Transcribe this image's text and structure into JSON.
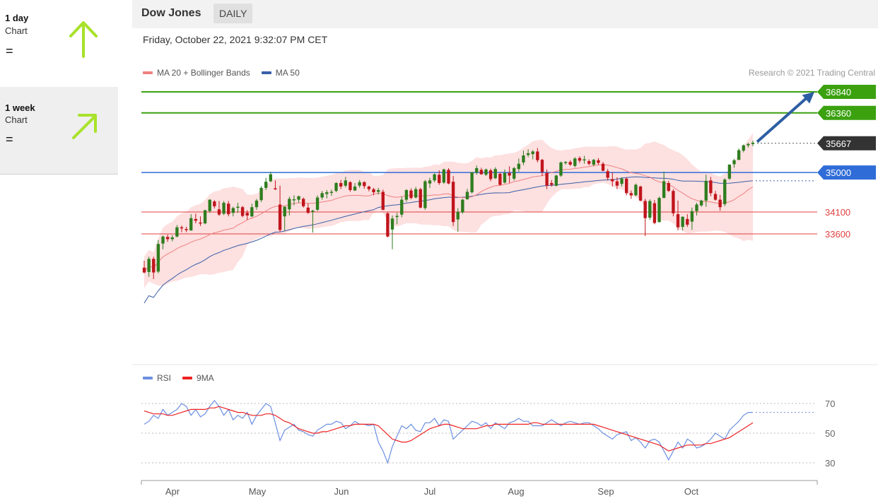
{
  "sidebar": {
    "cards": [
      {
        "period": "1 day",
        "sub": "Chart",
        "status": "=",
        "arrow": "up-arrow",
        "arrow_color": "#a8e22a"
      },
      {
        "period": "1 week",
        "sub": "Chart",
        "status": "=",
        "arrow": "up-right-arrow",
        "arrow_color": "#a8e22a"
      }
    ]
  },
  "header": {
    "instrument": "Dow Jones",
    "period": "DAILY",
    "datetime": "Friday, October 22, 2021 9:32:07 PM CET"
  },
  "legend": {
    "ma20": "MA 20 + Bollinger Bands",
    "ma50": "MA 50",
    "credit": "Research © 2021 Trading Central",
    "rsi": "RSI",
    "rsi_ma": "9MA"
  },
  "colors": {
    "up": "#2f7d1f",
    "down": "#c0151c",
    "target": "#3ba10f",
    "pivot": "#2f6cd8",
    "support": "#e04040",
    "current": "#333333",
    "ma20": "#f08080",
    "ma50": "#3a5fa8",
    "band": "#fde0e0",
    "rsi": "#6b8fe0",
    "rsi_ma": "#ee2222",
    "forecast_arrow": "#2d5ea3"
  },
  "chart_data": [
    {
      "type": "candlestick",
      "title": "Dow Jones",
      "x_ticks": [
        "Apr",
        "May",
        "Jun",
        "Jul",
        "Aug",
        "Sep",
        "Oct"
      ],
      "ylim": [
        32150,
        36950
      ],
      "levels": [
        {
          "value": 36840,
          "label": "36840",
          "kind": "target"
        },
        {
          "value": 36360,
          "label": "36360",
          "kind": "target"
        },
        {
          "value": 35667,
          "label": "35667",
          "kind": "current"
        },
        {
          "value": 35000,
          "label": "35000",
          "kind": "pivot"
        },
        {
          "value": 34100,
          "label": "34100",
          "kind": "support"
        },
        {
          "value": 33600,
          "label": "33600",
          "kind": "support"
        }
      ],
      "forecast": {
        "from": 35700,
        "to": 36840
      },
      "candles": [
        [
          32830,
          32990,
          32700,
          32720
        ],
        [
          32730,
          33080,
          32620,
          33030
        ],
        [
          33030,
          33080,
          32570,
          32720
        ],
        [
          32740,
          33460,
          32700,
          33370
        ],
        [
          33380,
          33560,
          33250,
          33540
        ],
        [
          33530,
          33580,
          33420,
          33480
        ],
        [
          33480,
          33570,
          33430,
          33520
        ],
        [
          33540,
          33800,
          33520,
          33750
        ],
        [
          33750,
          33790,
          33640,
          33730
        ],
        [
          33710,
          33760,
          33640,
          33700
        ],
        [
          33680,
          34050,
          33670,
          33960
        ],
        [
          33940,
          34060,
          33840,
          33900
        ],
        [
          33860,
          34000,
          33780,
          33840
        ],
        [
          33840,
          34150,
          33820,
          34140
        ],
        [
          34120,
          34390,
          34080,
          34380
        ],
        [
          34340,
          34370,
          34180,
          34230
        ],
        [
          34160,
          34350,
          34010,
          34040
        ],
        [
          34060,
          34350,
          34030,
          34310
        ],
        [
          34290,
          34350,
          34000,
          34050
        ],
        [
          34080,
          34220,
          34000,
          34190
        ],
        [
          34200,
          34310,
          34080,
          34220
        ],
        [
          34210,
          34240,
          33980,
          34010
        ],
        [
          34080,
          34140,
          33920,
          34020
        ],
        [
          34000,
          34290,
          33980,
          34210
        ],
        [
          34210,
          34400,
          34150,
          34360
        ],
        [
          34370,
          34690,
          34330,
          34650
        ],
        [
          34650,
          34880,
          34600,
          34790
        ],
        [
          34800,
          35020,
          34780,
          34960
        ],
        [
          34640,
          34820,
          34600,
          34620
        ],
        [
          34270,
          34700,
          33640,
          33690
        ],
        [
          34000,
          34230,
          33670,
          34220
        ],
        [
          34160,
          34450,
          34020,
          34400
        ],
        [
          34390,
          34480,
          34250,
          34390
        ],
        [
          34380,
          34470,
          34310,
          34460
        ],
        [
          34400,
          34430,
          34200,
          34230
        ],
        [
          34200,
          34300,
          34060,
          34080
        ],
        [
          34100,
          34150,
          33630,
          34130
        ],
        [
          34150,
          34480,
          34120,
          34430
        ],
        [
          34430,
          34580,
          34380,
          34530
        ],
        [
          34510,
          34600,
          34410,
          34550
        ],
        [
          34540,
          34610,
          34470,
          34560
        ],
        [
          34580,
          34780,
          34550,
          34760
        ],
        [
          34760,
          34830,
          34620,
          34680
        ],
        [
          34700,
          34900,
          34660,
          34820
        ],
        [
          34780,
          34800,
          34560,
          34600
        ],
        [
          34590,
          34760,
          34580,
          34680
        ],
        [
          34700,
          34830,
          34650,
          34780
        ],
        [
          34780,
          34800,
          34630,
          34690
        ],
        [
          34680,
          34700,
          34570,
          34620
        ],
        [
          34620,
          34650,
          34480,
          34550
        ],
        [
          34560,
          34650,
          34500,
          34600
        ],
        [
          34560,
          34610,
          34140,
          34150
        ],
        [
          34070,
          34090,
          33520,
          33540
        ],
        [
          33700,
          34020,
          33250,
          33950
        ],
        [
          34000,
          34080,
          33820,
          34010
        ],
        [
          34040,
          34450,
          33980,
          34380
        ],
        [
          34380,
          34620,
          34330,
          34600
        ],
        [
          34590,
          34640,
          34390,
          34420
        ],
        [
          34430,
          34670,
          34410,
          34620
        ],
        [
          34620,
          34650,
          34180,
          34200
        ],
        [
          34190,
          34830,
          34150,
          34800
        ],
        [
          34750,
          34880,
          34650,
          34820
        ],
        [
          34820,
          34980,
          34780,
          34960
        ],
        [
          34950,
          35050,
          34720,
          34760
        ],
        [
          34770,
          35090,
          34740,
          35070
        ],
        [
          35060,
          35100,
          34730,
          34750
        ],
        [
          34790,
          34920,
          33780,
          33870
        ],
        [
          33930,
          34190,
          33650,
          34100
        ],
        [
          34090,
          34400,
          34060,
          34380
        ],
        [
          34390,
          34630,
          34380,
          34560
        ],
        [
          34550,
          35000,
          34520,
          35010
        ],
        [
          35000,
          35160,
          34950,
          35100
        ],
        [
          35060,
          35110,
          34950,
          34960
        ],
        [
          34950,
          35090,
          34920,
          35070
        ],
        [
          35050,
          35090,
          34800,
          34850
        ],
        [
          34870,
          35120,
          34850,
          35080
        ],
        [
          34970,
          35000,
          34700,
          34720
        ],
        [
          34770,
          35070,
          34750,
          34990
        ],
        [
          34990,
          35140,
          34760,
          34930
        ],
        [
          34860,
          35130,
          34820,
          35100
        ],
        [
          35080,
          35320,
          35020,
          35200
        ],
        [
          35230,
          35500,
          35170,
          35390
        ],
        [
          35400,
          35530,
          35350,
          35440
        ],
        [
          35420,
          35510,
          35300,
          35480
        ],
        [
          35480,
          35560,
          35230,
          35280
        ],
        [
          35290,
          35310,
          34920,
          35010
        ],
        [
          34990,
          35070,
          34620,
          34700
        ],
        [
          34760,
          34830,
          34680,
          34720
        ],
        [
          34700,
          34950,
          34680,
          34930
        ],
        [
          34930,
          35250,
          34900,
          35230
        ],
        [
          35240,
          35260,
          35180,
          35240
        ],
        [
          35240,
          35280,
          35150,
          35180
        ],
        [
          35150,
          35350,
          35120,
          35320
        ],
        [
          35330,
          35370,
          35220,
          35270
        ],
        [
          35290,
          35380,
          35200,
          35300
        ],
        [
          35260,
          35300,
          35160,
          35200
        ],
        [
          35180,
          35310,
          35140,
          35290
        ],
        [
          35280,
          35330,
          35180,
          35220
        ],
        [
          35200,
          35240,
          35030,
          35040
        ],
        [
          35030,
          35080,
          34820,
          34880
        ],
        [
          34850,
          35000,
          34680,
          34800
        ],
        [
          34800,
          34890,
          34620,
          34700
        ],
        [
          34740,
          34890,
          34680,
          34860
        ],
        [
          34860,
          34890,
          34480,
          34530
        ],
        [
          34530,
          34590,
          34400,
          34480
        ],
        [
          34480,
          34750,
          34460,
          34720
        ],
        [
          34680,
          34700,
          34340,
          34360
        ],
        [
          34350,
          34400,
          33550,
          33960
        ],
        [
          33970,
          34390,
          33920,
          34350
        ],
        [
          34300,
          34370,
          33820,
          33850
        ],
        [
          33870,
          34450,
          33860,
          34420
        ],
        [
          34420,
          35020,
          34420,
          34800
        ],
        [
          34760,
          34810,
          34560,
          34580
        ],
        [
          34580,
          34620,
          34000,
          34070
        ],
        [
          34050,
          34360,
          33680,
          33750
        ],
        [
          33760,
          34000,
          33680,
          33990
        ],
        [
          33940,
          34050,
          33760,
          33810
        ],
        [
          33880,
          34200,
          33690,
          34120
        ],
        [
          34120,
          34310,
          34020,
          34270
        ],
        [
          34250,
          34380,
          34220,
          34360
        ],
        [
          34360,
          34950,
          34220,
          34810
        ],
        [
          34820,
          34900,
          34460,
          34530
        ],
        [
          34510,
          34580,
          34360,
          34380
        ],
        [
          34380,
          34490,
          34130,
          34210
        ],
        [
          34280,
          34870,
          34230,
          34840
        ],
        [
          34860,
          35190,
          34830,
          35180
        ],
        [
          35190,
          35310,
          35110,
          35280
        ],
        [
          35290,
          35550,
          35280,
          35510
        ],
        [
          35500,
          35640,
          35460,
          35620
        ],
        [
          35620,
          35680,
          35570,
          35650
        ],
        [
          35650,
          35730,
          35600,
          35680
        ]
      ]
    },
    {
      "type": "line",
      "title": "RSI",
      "series": [
        {
          "name": "RSI",
          "values": [
            56,
            58,
            62,
            60,
            66,
            62,
            64,
            66,
            70,
            68,
            62,
            66,
            61,
            63,
            68,
            72,
            68,
            62,
            66,
            59,
            62,
            60,
            64,
            56,
            62,
            66,
            70,
            68,
            57,
            45,
            52,
            54,
            56,
            52,
            51,
            49,
            48,
            52,
            54,
            56,
            56,
            58,
            57,
            53,
            55,
            58,
            56,
            56,
            55,
            56,
            44,
            38,
            30,
            41,
            48,
            55,
            53,
            56,
            52,
            51,
            57,
            57,
            60,
            55,
            59,
            58,
            46,
            49,
            52,
            55,
            58,
            57,
            55,
            57,
            53,
            57,
            55,
            53,
            57,
            58,
            60,
            58,
            58,
            55,
            55,
            55,
            57,
            59,
            57,
            55,
            57,
            58,
            57,
            56,
            57,
            57,
            55,
            53,
            50,
            48,
            46,
            49,
            50,
            51,
            45,
            47,
            44,
            40,
            45,
            46,
            44,
            38,
            32,
            38,
            44,
            40,
            46,
            44,
            40,
            41,
            43,
            46,
            50,
            48,
            46,
            52,
            55,
            58,
            62,
            64,
            64
          ]
        },
        {
          "name": "9MA",
          "values": [
            65,
            64,
            63,
            63,
            63,
            62,
            62,
            63,
            64,
            65,
            66,
            66,
            66,
            66,
            67,
            67,
            68,
            67,
            66,
            65,
            64,
            64,
            63,
            62,
            62,
            62,
            63,
            63,
            62,
            60,
            58,
            57,
            55,
            53,
            52,
            51,
            50,
            50,
            51,
            51,
            52,
            53,
            54,
            55,
            55,
            56,
            56,
            56,
            56,
            56,
            55,
            52,
            49,
            46,
            45,
            44,
            44,
            45,
            47,
            49,
            51,
            53,
            54,
            55,
            56,
            56,
            55,
            54,
            53,
            53,
            53,
            53,
            54,
            55,
            55,
            56,
            56,
            56,
            56,
            56,
            56,
            56,
            56,
            57,
            57,
            56,
            56,
            56,
            56,
            56,
            56,
            56,
            56,
            56,
            56,
            56,
            56,
            55,
            54,
            53,
            52,
            51,
            50,
            49,
            48,
            47,
            46,
            45,
            44,
            43,
            42,
            40,
            38,
            39,
            40,
            41,
            42,
            42,
            42,
            42,
            43,
            43,
            44,
            45,
            46,
            47,
            49,
            51,
            53,
            55,
            57
          ]
        }
      ],
      "levels": [
        70,
        50,
        30
      ]
    }
  ]
}
